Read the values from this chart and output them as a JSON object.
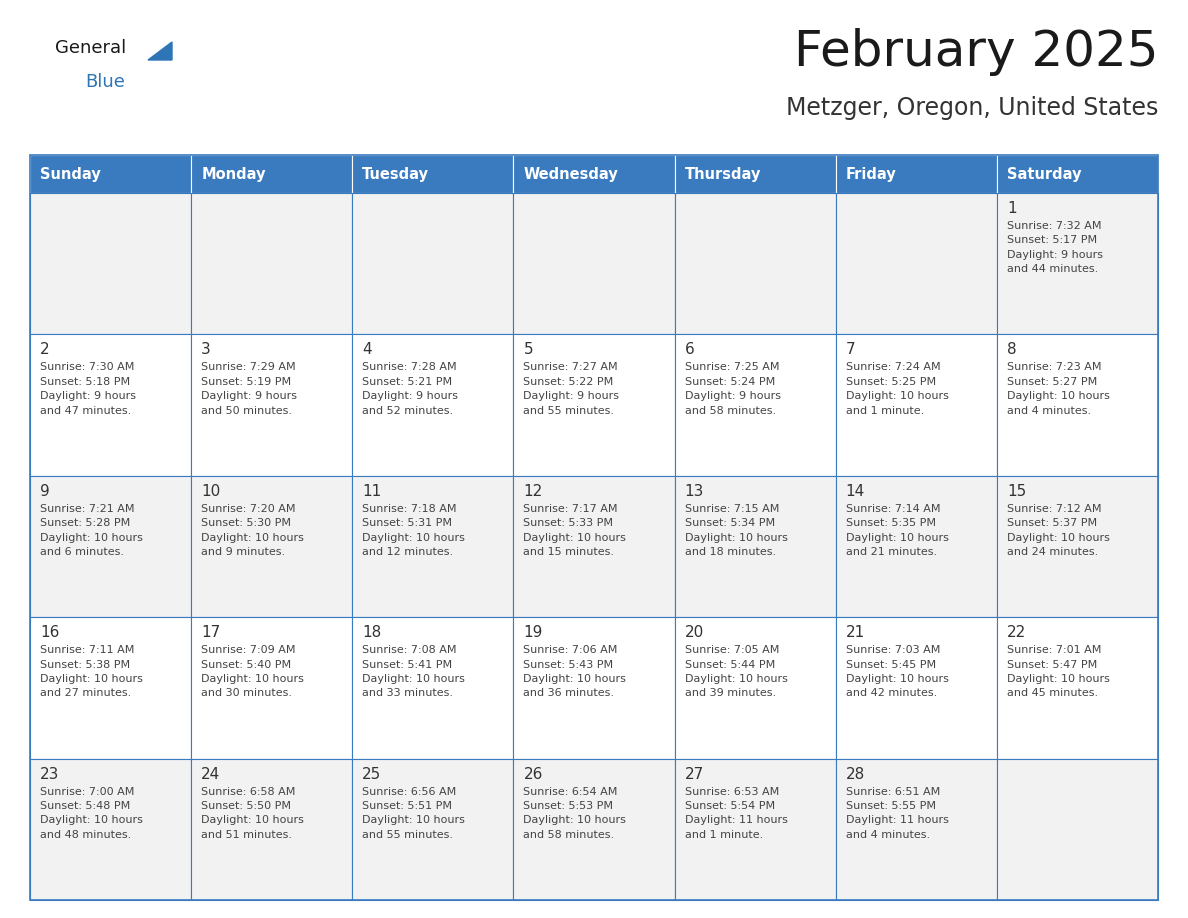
{
  "title": "February 2025",
  "subtitle": "Metzger, Oregon, United States",
  "days_of_week": [
    "Sunday",
    "Monday",
    "Tuesday",
    "Wednesday",
    "Thursday",
    "Friday",
    "Saturday"
  ],
  "header_bg": "#3a7abf",
  "header_text": "#ffffff",
  "cell_bg_odd": "#f2f2f2",
  "cell_bg_even": "#ffffff",
  "cell_text": "#444444",
  "border_color": "#3a7abf",
  "day_number_color": "#333333",
  "title_color": "#1a1a1a",
  "subtitle_color": "#333333",
  "logo_general_color": "#1a1a1a",
  "logo_blue_color": "#2e75b6",
  "weeks": [
    [
      {
        "day": null,
        "info": null
      },
      {
        "day": null,
        "info": null
      },
      {
        "day": null,
        "info": null
      },
      {
        "day": null,
        "info": null
      },
      {
        "day": null,
        "info": null
      },
      {
        "day": null,
        "info": null
      },
      {
        "day": 1,
        "info": "Sunrise: 7:32 AM\nSunset: 5:17 PM\nDaylight: 9 hours\nand 44 minutes."
      }
    ],
    [
      {
        "day": 2,
        "info": "Sunrise: 7:30 AM\nSunset: 5:18 PM\nDaylight: 9 hours\nand 47 minutes."
      },
      {
        "day": 3,
        "info": "Sunrise: 7:29 AM\nSunset: 5:19 PM\nDaylight: 9 hours\nand 50 minutes."
      },
      {
        "day": 4,
        "info": "Sunrise: 7:28 AM\nSunset: 5:21 PM\nDaylight: 9 hours\nand 52 minutes."
      },
      {
        "day": 5,
        "info": "Sunrise: 7:27 AM\nSunset: 5:22 PM\nDaylight: 9 hours\nand 55 minutes."
      },
      {
        "day": 6,
        "info": "Sunrise: 7:25 AM\nSunset: 5:24 PM\nDaylight: 9 hours\nand 58 minutes."
      },
      {
        "day": 7,
        "info": "Sunrise: 7:24 AM\nSunset: 5:25 PM\nDaylight: 10 hours\nand 1 minute."
      },
      {
        "day": 8,
        "info": "Sunrise: 7:23 AM\nSunset: 5:27 PM\nDaylight: 10 hours\nand 4 minutes."
      }
    ],
    [
      {
        "day": 9,
        "info": "Sunrise: 7:21 AM\nSunset: 5:28 PM\nDaylight: 10 hours\nand 6 minutes."
      },
      {
        "day": 10,
        "info": "Sunrise: 7:20 AM\nSunset: 5:30 PM\nDaylight: 10 hours\nand 9 minutes."
      },
      {
        "day": 11,
        "info": "Sunrise: 7:18 AM\nSunset: 5:31 PM\nDaylight: 10 hours\nand 12 minutes."
      },
      {
        "day": 12,
        "info": "Sunrise: 7:17 AM\nSunset: 5:33 PM\nDaylight: 10 hours\nand 15 minutes."
      },
      {
        "day": 13,
        "info": "Sunrise: 7:15 AM\nSunset: 5:34 PM\nDaylight: 10 hours\nand 18 minutes."
      },
      {
        "day": 14,
        "info": "Sunrise: 7:14 AM\nSunset: 5:35 PM\nDaylight: 10 hours\nand 21 minutes."
      },
      {
        "day": 15,
        "info": "Sunrise: 7:12 AM\nSunset: 5:37 PM\nDaylight: 10 hours\nand 24 minutes."
      }
    ],
    [
      {
        "day": 16,
        "info": "Sunrise: 7:11 AM\nSunset: 5:38 PM\nDaylight: 10 hours\nand 27 minutes."
      },
      {
        "day": 17,
        "info": "Sunrise: 7:09 AM\nSunset: 5:40 PM\nDaylight: 10 hours\nand 30 minutes."
      },
      {
        "day": 18,
        "info": "Sunrise: 7:08 AM\nSunset: 5:41 PM\nDaylight: 10 hours\nand 33 minutes."
      },
      {
        "day": 19,
        "info": "Sunrise: 7:06 AM\nSunset: 5:43 PM\nDaylight: 10 hours\nand 36 minutes."
      },
      {
        "day": 20,
        "info": "Sunrise: 7:05 AM\nSunset: 5:44 PM\nDaylight: 10 hours\nand 39 minutes."
      },
      {
        "day": 21,
        "info": "Sunrise: 7:03 AM\nSunset: 5:45 PM\nDaylight: 10 hours\nand 42 minutes."
      },
      {
        "day": 22,
        "info": "Sunrise: 7:01 AM\nSunset: 5:47 PM\nDaylight: 10 hours\nand 45 minutes."
      }
    ],
    [
      {
        "day": 23,
        "info": "Sunrise: 7:00 AM\nSunset: 5:48 PM\nDaylight: 10 hours\nand 48 minutes."
      },
      {
        "day": 24,
        "info": "Sunrise: 6:58 AM\nSunset: 5:50 PM\nDaylight: 10 hours\nand 51 minutes."
      },
      {
        "day": 25,
        "info": "Sunrise: 6:56 AM\nSunset: 5:51 PM\nDaylight: 10 hours\nand 55 minutes."
      },
      {
        "day": 26,
        "info": "Sunrise: 6:54 AM\nSunset: 5:53 PM\nDaylight: 10 hours\nand 58 minutes."
      },
      {
        "day": 27,
        "info": "Sunrise: 6:53 AM\nSunset: 5:54 PM\nDaylight: 11 hours\nand 1 minute."
      },
      {
        "day": 28,
        "info": "Sunrise: 6:51 AM\nSunset: 5:55 PM\nDaylight: 11 hours\nand 4 minutes."
      },
      {
        "day": null,
        "info": null
      }
    ]
  ]
}
